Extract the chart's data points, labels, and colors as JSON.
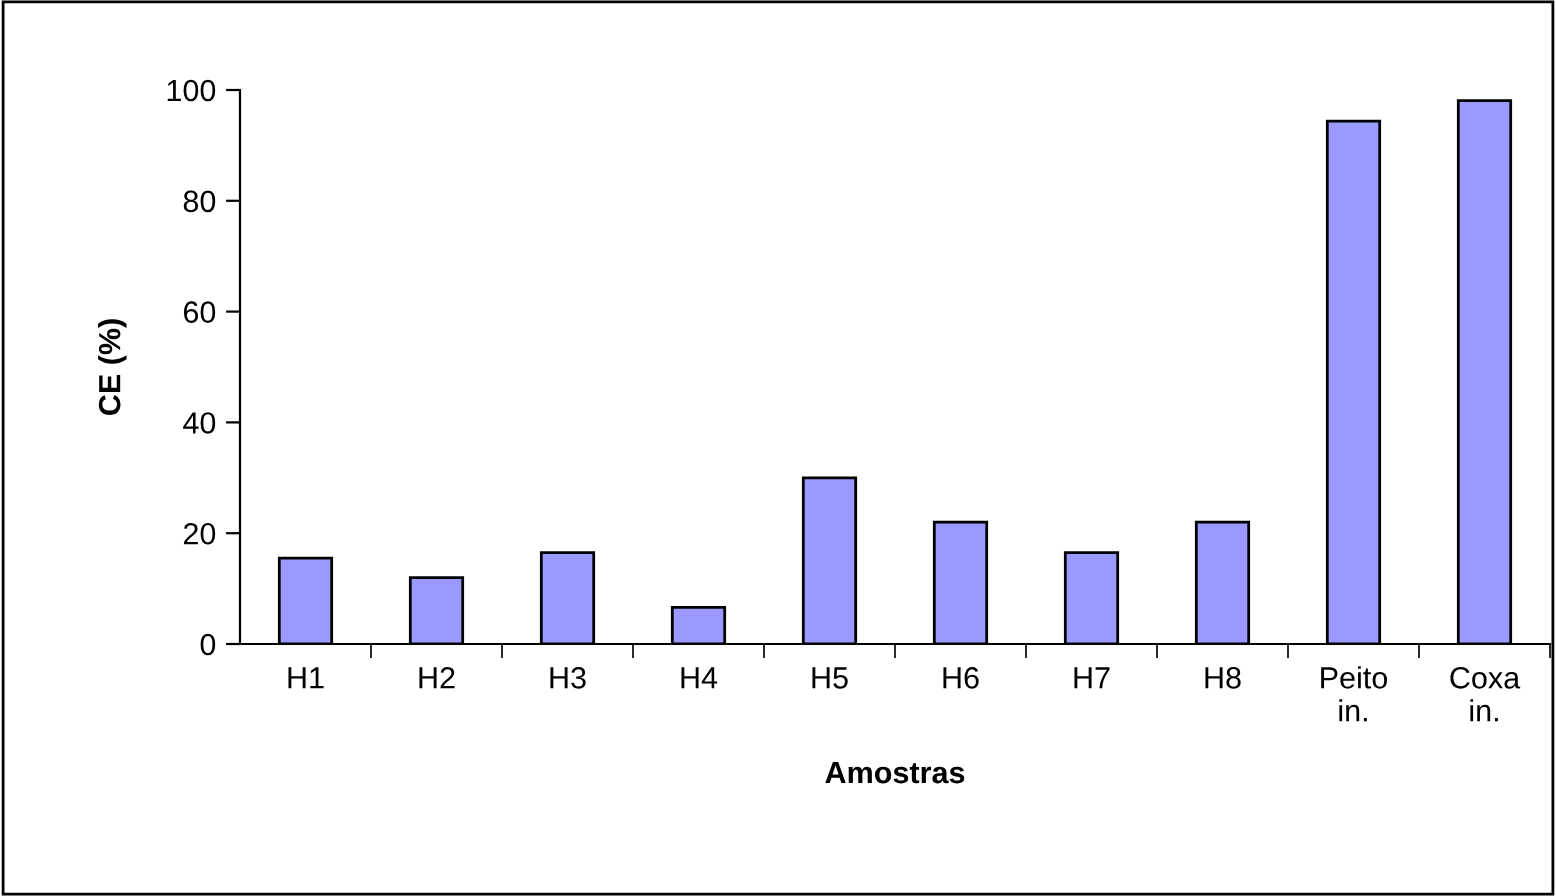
{
  "chart_data": {
    "type": "bar",
    "xlabel": "Amostras",
    "ylabel": "CE (%)",
    "categories": [
      "H1",
      "H2",
      "H3",
      "H4",
      "H5",
      "H6",
      "H7",
      "H8",
      "Peito\nin.",
      "Coxa\nin."
    ],
    "values": [
      15.5,
      12,
      16.5,
      6.6,
      30,
      22,
      16.5,
      22,
      94.4,
      98.1
    ],
    "color": "#9999ff",
    "ylim": [
      0,
      100
    ],
    "yticks": [
      0,
      20,
      40,
      60,
      80,
      100
    ],
    "grid": false
  }
}
